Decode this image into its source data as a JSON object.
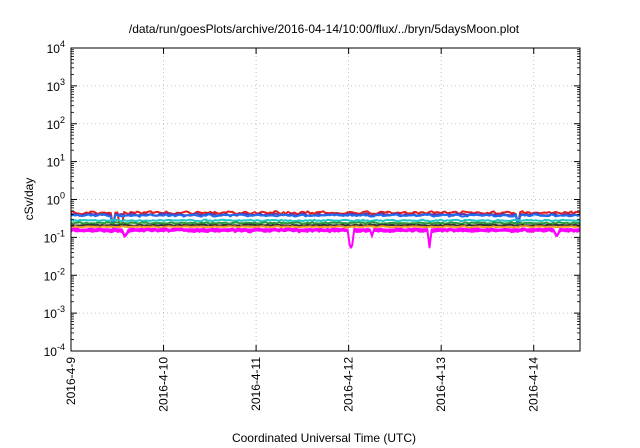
{
  "chart_data": {
    "type": "line",
    "title": "/data/run/goesPlots/archive/2016-04-14/10:00/flux/../bryn/5daysMoon.plot",
    "xlabel": "Coordinated Universal Time (UTC)",
    "ylabel": "cSv/day",
    "yscale": "log",
    "ylim": [
      0.0001,
      10000
    ],
    "xlim": [
      "2016-04-09T00:00",
      "2016-04-14T12:00"
    ],
    "grid": true,
    "y_ticks": [
      {
        "base": "10",
        "exp": "-4"
      },
      {
        "base": "10",
        "exp": "-3"
      },
      {
        "base": "10",
        "exp": "-2"
      },
      {
        "base": "10",
        "exp": "-1"
      },
      {
        "base": "10",
        "exp": "0"
      },
      {
        "base": "10",
        "exp": "1"
      },
      {
        "base": "10",
        "exp": "2"
      },
      {
        "base": "10",
        "exp": "3"
      },
      {
        "base": "10",
        "exp": "4"
      }
    ],
    "x_ticks": [
      {
        "label": "2016-4-9",
        "date": "2016-04-09"
      },
      {
        "label": "2016-4-10",
        "date": "2016-04-10"
      },
      {
        "label": "2016-4-11",
        "date": "2016-04-11"
      },
      {
        "label": "2016-4-12",
        "date": "2016-04-12"
      },
      {
        "label": "2016-4-13",
        "date": "2016-04-13"
      },
      {
        "label": "2016-4-14",
        "date": "2016-04-14"
      }
    ],
    "series": [
      {
        "color": "#e01f1f",
        "level": 0.45,
        "noise": 0.07,
        "dips": [
          {
            "at": "2016-04-09T11:00",
            "to": 0.2
          },
          {
            "at": "2016-04-09T13:00",
            "to": 0.2
          },
          {
            "at": "2016-04-13T20:00",
            "to": 0.22
          }
        ]
      },
      {
        "color": "#7030a0",
        "level": 0.4,
        "noise": 0.06,
        "dips": [
          {
            "at": "2016-04-09T11:00",
            "to": 0.18
          },
          {
            "at": "2016-04-13T20:00",
            "to": 0.2
          }
        ]
      },
      {
        "color": "#1e6ff0",
        "level": 0.38,
        "noise": 0.06,
        "dips": [
          {
            "at": "2016-04-09T11:00",
            "to": 0.18
          },
          {
            "at": "2016-04-13T20:00",
            "to": 0.2
          }
        ]
      },
      {
        "color": "#20c8c8",
        "level": 0.28,
        "noise": 0.04,
        "dips": []
      },
      {
        "color": "#2a9d3a",
        "level": 0.24,
        "noise": 0.04,
        "dips": []
      },
      {
        "color": "#333333",
        "level": 0.21,
        "noise": 0.03,
        "dips": []
      },
      {
        "color": "#f0a020",
        "level": 0.19,
        "noise": 0.03,
        "dips": []
      },
      {
        "color": "#ff00ff",
        "level": 0.165,
        "noise": 0.03,
        "fill": true,
        "dips": [
          {
            "at": "2016-04-09T14:00",
            "to": 0.12
          },
          {
            "at": "2016-04-12T00:30",
            "to": 0.06
          },
          {
            "at": "2016-04-12T21:00",
            "to": 0.055
          },
          {
            "at": "2016-04-12T06:00",
            "to": 0.11
          },
          {
            "at": "2016-04-14T06:00",
            "to": 0.12
          }
        ]
      }
    ]
  }
}
